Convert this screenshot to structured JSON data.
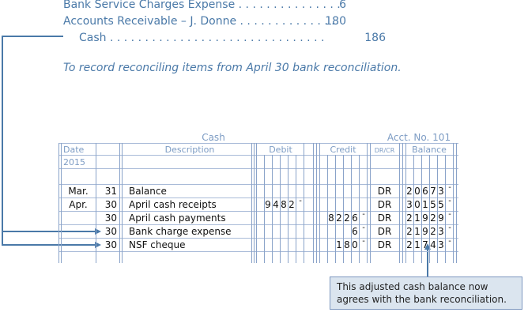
{
  "journal": {
    "lines": [
      {
        "account": "Bank Service Charges Expense . . . . . . . . . . . . . . .",
        "amount": "6"
      },
      {
        "account": "Accounts Receivable – J. Donne . . . . . . . . . . . . . .",
        "amount": "180"
      },
      {
        "account": "Cash . . . . . . . . . . . . . . . . . . . . . . . . . . . . . . .",
        "amount": "186"
      }
    ],
    "memo": "To record reconciling items from April 30 bank reconciliation."
  },
  "ledger": {
    "title": "Cash",
    "account_no": "Acct. No. 101",
    "headers": {
      "date": "Date",
      "description": "Description",
      "debit": "Debit",
      "credit": "Credit",
      "drcr": "DR/CR",
      "balance": "Balance"
    },
    "year": "2015",
    "rows": [
      {
        "month": "Mar.",
        "day": "31",
        "description": "Balance",
        "debit": "",
        "credit": "",
        "drcr": "DR",
        "balance": "20673"
      },
      {
        "month": "Apr.",
        "day": "30",
        "description": "April cash receipts",
        "debit": "9482",
        "credit": "",
        "drcr": "DR",
        "balance": "30155"
      },
      {
        "month": "",
        "day": "30",
        "description": "April cash payments",
        "debit": "",
        "credit": "8226",
        "drcr": "DR",
        "balance": "21929"
      },
      {
        "month": "",
        "day": "30",
        "description": "Bank charge expense",
        "debit": "",
        "credit": "6",
        "drcr": "DR",
        "balance": "21923"
      },
      {
        "month": "",
        "day": "30",
        "description": "NSF cheque",
        "debit": "",
        "credit": "180",
        "drcr": "DR",
        "balance": "21743"
      }
    ],
    "dash": "-"
  },
  "note": "This adjusted cash balance now agrees with the bank reconciliation.",
  "colors": {
    "accent": "#4a79a8",
    "note_bg": "#dbe5ef"
  }
}
